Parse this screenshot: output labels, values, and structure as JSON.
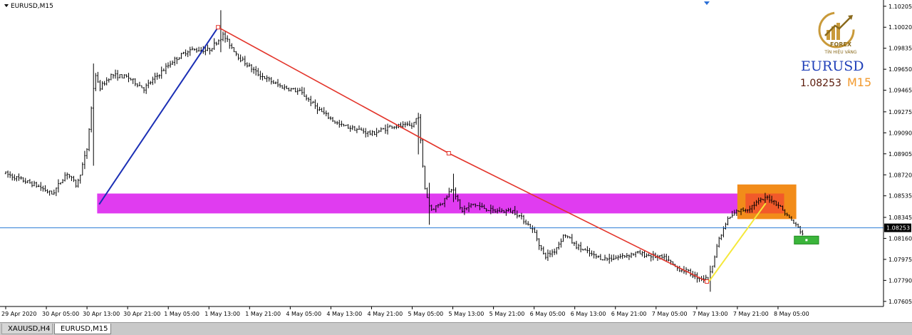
{
  "window": {
    "title": "EURUSD,M15"
  },
  "tabs": [
    {
      "label": "XAUUSD,H4",
      "active": false
    },
    {
      "label": "EURUSD,M15",
      "active": true
    }
  ],
  "overlay": {
    "logo_caption": "TÍN HIỆU VÀNG",
    "logo_text": "FOREX",
    "symbol": "EURUSD",
    "price": "1.08253",
    "timeframe": "M15",
    "symbol_color": "#1f3fb8",
    "timeframe_color": "#f29a2e"
  },
  "current_price_label": "1.08253",
  "chart_data": {
    "type": "bar",
    "title": "",
    "y_ticks": [
      "1.10205",
      "1.10020",
      "1.09835",
      "1.09650",
      "1.09465",
      "1.09275",
      "1.09090",
      "1.08905",
      "1.08720",
      "1.08535",
      "1.08345",
      "1.08160",
      "1.07975",
      "1.07790",
      "1.07605"
    ],
    "ylim": [
      1.0756,
      1.1026
    ],
    "x_ticks": [
      "29 Apr 2020",
      "30 Apr 05:00",
      "30 Apr 13:00",
      "30 Apr 21:00",
      "1 May 05:00",
      "1 May 13:00",
      "1 May 21:00",
      "4 May 05:00",
      "4 May 13:00",
      "4 May 21:00",
      "5 May 05:00",
      "5 May 13:00",
      "5 May 21:00",
      "6 May 05:00",
      "6 May 13:00",
      "6 May 21:00",
      "7 May 05:00",
      "7 May 13:00",
      "7 May 21:00",
      "8 May 05:00"
    ],
    "price_path": [
      [
        0,
        1.0873
      ],
      [
        1.6,
        1.0862
      ],
      [
        2.3,
        1.0855
      ],
      [
        3.0,
        1.0874
      ],
      [
        3.5,
        1.0862
      ],
      [
        4.0,
        1.0895
      ],
      [
        4.4,
        1.0962
      ],
      [
        4.6,
        1.0948
      ],
      [
        5.2,
        1.096
      ],
      [
        6.0,
        1.0958
      ],
      [
        6.8,
        1.0948
      ],
      [
        7.5,
        1.096
      ],
      [
        8.2,
        1.0972
      ],
      [
        9.0,
        1.0982
      ],
      [
        10.0,
        1.0982
      ],
      [
        10.7,
        1.0995
      ],
      [
        11.5,
        1.0975
      ],
      [
        12.4,
        1.0961
      ],
      [
        13.5,
        1.095
      ],
      [
        14.5,
        1.0945
      ],
      [
        15.5,
        1.0928
      ],
      [
        16.4,
        1.0916
      ],
      [
        17.3,
        1.0912
      ],
      [
        18.0,
        1.0908
      ],
      [
        19.0,
        1.0915
      ],
      [
        20.0,
        1.0915
      ],
      [
        20.3,
        1.0925
      ],
      [
        20.6,
        1.0862
      ],
      [
        20.9,
        1.0841
      ],
      [
        21.5,
        1.0848
      ],
      [
        22.0,
        1.0862
      ],
      [
        22.4,
        1.084
      ],
      [
        23.0,
        1.0846
      ],
      [
        24.0,
        1.084
      ],
      [
        25.0,
        1.084
      ],
      [
        25.5,
        1.0832
      ],
      [
        26.0,
        1.0822
      ],
      [
        26.5,
        1.08
      ],
      [
        27.0,
        1.0805
      ],
      [
        27.5,
        1.082
      ],
      [
        28.0,
        1.081
      ],
      [
        28.5,
        1.0805
      ],
      [
        29.0,
        1.08
      ],
      [
        29.5,
        1.0798
      ],
      [
        30.0,
        1.0799
      ],
      [
        31.0,
        1.0803
      ],
      [
        32.0,
        1.08
      ],
      [
        32.5,
        1.0798
      ],
      [
        33.0,
        1.079
      ],
      [
        33.5,
        1.0787
      ],
      [
        34.0,
        1.0782
      ],
      [
        34.6,
        1.078
      ],
      [
        35.0,
        1.081
      ],
      [
        35.5,
        1.0832
      ],
      [
        36.0,
        1.084
      ],
      [
        36.5,
        1.0842
      ],
      [
        37.0,
        1.0848
      ],
      [
        37.5,
        1.0852
      ],
      [
        38.0,
        1.0846
      ],
      [
        38.5,
        1.0835
      ],
      [
        39.0,
        1.0825
      ],
      [
        39.3,
        1.0818
      ]
    ],
    "spikes": [
      {
        "t": 4.3,
        "high": 1.097,
        "low": 1.088
      },
      {
        "t": 10.6,
        "high": 1.1017,
        "low": 1.098
      },
      {
        "t": 20.3,
        "high": 1.0925,
        "low": 1.089
      },
      {
        "t": 20.8,
        "high": 1.0865,
        "low": 1.0828
      },
      {
        "t": 22.0,
        "high": 1.0873,
        "low": 1.0848
      },
      {
        "t": 34.7,
        "high": 1.0792,
        "low": 1.0769
      }
    ],
    "annotations": {
      "trend_up_blue": {
        "from": [
          4.6,
          1.0846
        ],
        "to": [
          10.45,
          1.1002
        ]
      },
      "trend_down_red": [
        [
          10.45,
          1.1002
        ],
        [
          21.8,
          1.0891
        ],
        [
          34.5,
          1.0778
        ]
      ],
      "trend_up_yellow": {
        "from": [
          34.6,
          1.0778
        ],
        "to": [
          37.4,
          1.0847
        ]
      },
      "support_zone": {
        "t0": 4.5,
        "t1": 38.6,
        "y0": 1.0838,
        "y1": 1.08555,
        "color": "#e03cf0"
      },
      "resistance_box_outer": {
        "t0": 36.0,
        "t1": 38.9,
        "y0": 1.0833,
        "y1": 1.08635,
        "color": "#f28c1a"
      },
      "resistance_box_inner": {
        "t0": 36.4,
        "t1": 38.3,
        "y0": 1.0838,
        "y1": 1.08555,
        "color": "#f25a2a"
      },
      "target_rect": {
        "t0": 38.8,
        "t1": 40.0,
        "y0": 1.0811,
        "y1": 1.0818,
        "color": "#3bb53b"
      },
      "current_price": 1.08253
    },
    "colors": {
      "candles": "#000000",
      "price_line": "#2b7bd6",
      "trend_down": "#e3342a",
      "trend_up": "#1b2fb5",
      "trend_up_short": "#f5e83a"
    }
  }
}
